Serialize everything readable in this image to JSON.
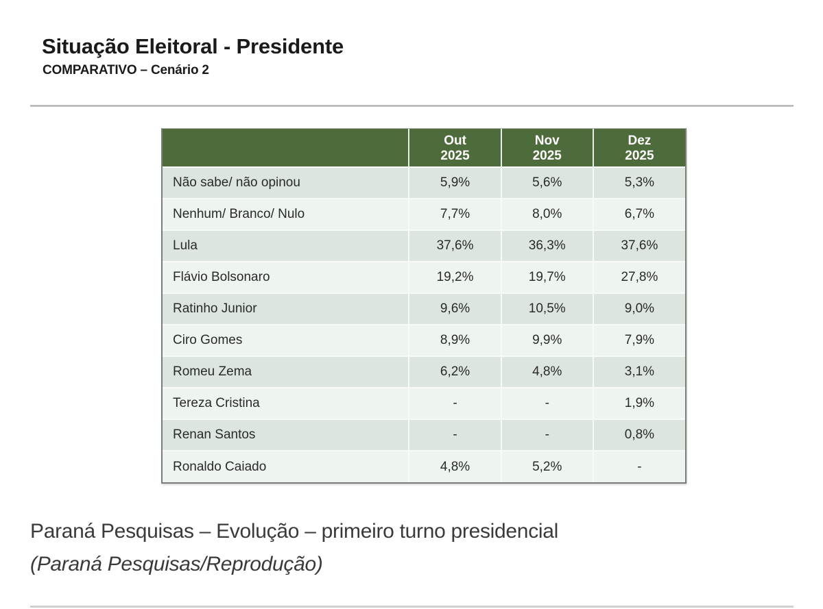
{
  "slide": {
    "title": "Situação Eleitoral - Presidente",
    "subtitle": "COMPARATIVO – Cenário 2"
  },
  "table": {
    "header_color": "#4e6b3b",
    "columns": [
      {
        "label": "",
        "month": "",
        "year": ""
      },
      {
        "month": "Out",
        "year": "2025"
      },
      {
        "month": "Nov",
        "year": "2025"
      },
      {
        "month": "Dez",
        "year": "2025"
      }
    ],
    "rows": [
      {
        "name": "Não sabe/ não opinou",
        "values": [
          "5,9%",
          "5,6%",
          "5,3%"
        ]
      },
      {
        "name": "Nenhum/ Branco/ Nulo",
        "values": [
          "7,7%",
          "8,0%",
          "6,7%"
        ]
      },
      {
        "name": "Lula",
        "values": [
          "37,6%",
          "36,3%",
          "37,6%"
        ]
      },
      {
        "name": "Flávio Bolsonaro",
        "values": [
          "19,2%",
          "19,7%",
          "27,8%"
        ]
      },
      {
        "name": "Ratinho Junior",
        "values": [
          "9,6%",
          "10,5%",
          "9,0%"
        ]
      },
      {
        "name": "Ciro Gomes",
        "values": [
          "8,9%",
          "9,9%",
          "7,9%"
        ]
      },
      {
        "name": "Romeu Zema",
        "values": [
          "6,2%",
          "4,8%",
          "3,1%"
        ]
      },
      {
        "name": "Tereza Cristina",
        "values": [
          "-",
          "-",
          "1,9%"
        ]
      },
      {
        "name": "Renan Santos",
        "values": [
          "-",
          "-",
          "0,8%"
        ]
      },
      {
        "name": "Ronaldo Caiado",
        "values": [
          "4,8%",
          "5,2%",
          "-"
        ]
      }
    ]
  },
  "caption": {
    "text": "Paraná Pesquisas – Evolução – primeiro turno presidencial",
    "credit": "(Paraná Pesquisas/Reprodução)"
  },
  "chart_data": {
    "type": "table",
    "title": "Situação Eleitoral - Presidente",
    "subtitle": "COMPARATIVO – Cenário 2",
    "categories": [
      "Out 2025",
      "Nov 2025",
      "Dez 2025"
    ],
    "series": [
      {
        "name": "Não sabe/ não opinou",
        "values": [
          5.9,
          5.6,
          5.3
        ]
      },
      {
        "name": "Nenhum/ Branco/ Nulo",
        "values": [
          7.7,
          8.0,
          6.7
        ]
      },
      {
        "name": "Lula",
        "values": [
          37.6,
          36.3,
          37.6
        ]
      },
      {
        "name": "Flávio Bolsonaro",
        "values": [
          19.2,
          19.7,
          27.8
        ]
      },
      {
        "name": "Ratinho Junior",
        "values": [
          9.6,
          10.5,
          9.0
        ]
      },
      {
        "name": "Ciro Gomes",
        "values": [
          8.9,
          9.9,
          7.9
        ]
      },
      {
        "name": "Romeu Zema",
        "values": [
          6.2,
          4.8,
          3.1
        ]
      },
      {
        "name": "Tereza Cristina",
        "values": [
          null,
          null,
          1.9
        ]
      },
      {
        "name": "Renan Santos",
        "values": [
          null,
          null,
          0.8
        ]
      },
      {
        "name": "Ronaldo Caiado",
        "values": [
          4.8,
          5.2,
          null
        ]
      }
    ],
    "unit": "%"
  }
}
